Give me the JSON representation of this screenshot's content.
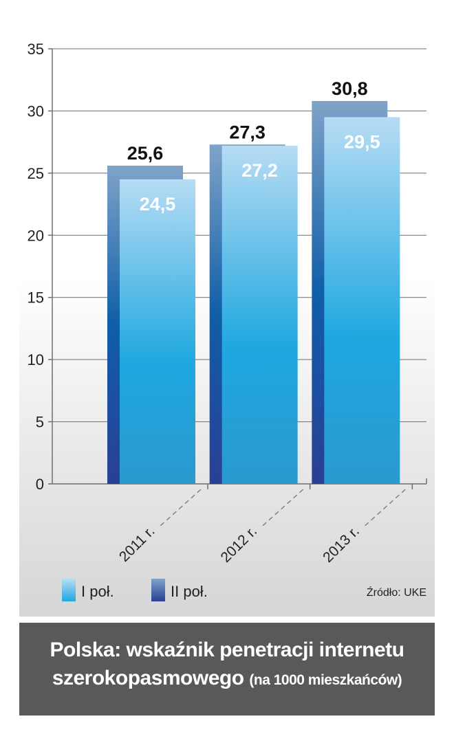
{
  "chart_data": {
    "type": "bar",
    "categories": [
      "2011 r.",
      "2012 r.",
      "2013 r."
    ],
    "series": [
      {
        "name": "I poł.",
        "values": [
          24.5,
          27.2,
          29.5
        ],
        "labels": [
          "24,5",
          "27,2",
          "29,5"
        ]
      },
      {
        "name": "II poł.",
        "values": [
          25.6,
          27.3,
          30.8
        ],
        "labels": [
          "25,6",
          "27,3",
          "30,8"
        ]
      }
    ],
    "yticks": [
      "0",
      "5",
      "10",
      "15",
      "20",
      "25",
      "30",
      "35"
    ],
    "ylim": [
      0,
      35
    ],
    "grid": true,
    "legend_position": "bottom-left",
    "colors": {
      "front_top": "#b7dcf4",
      "front_bottom": "#1fa8e0",
      "back_top": "#7fa3c8",
      "back_bottom": "#2a3f96"
    }
  },
  "source": "Źródło: UKE",
  "title": {
    "line1": "Polska: wskaźnik penetracji internetu",
    "line2_main": "szerokopasmowego",
    "line2_sub": "(na 1000 mieszkańców)"
  }
}
